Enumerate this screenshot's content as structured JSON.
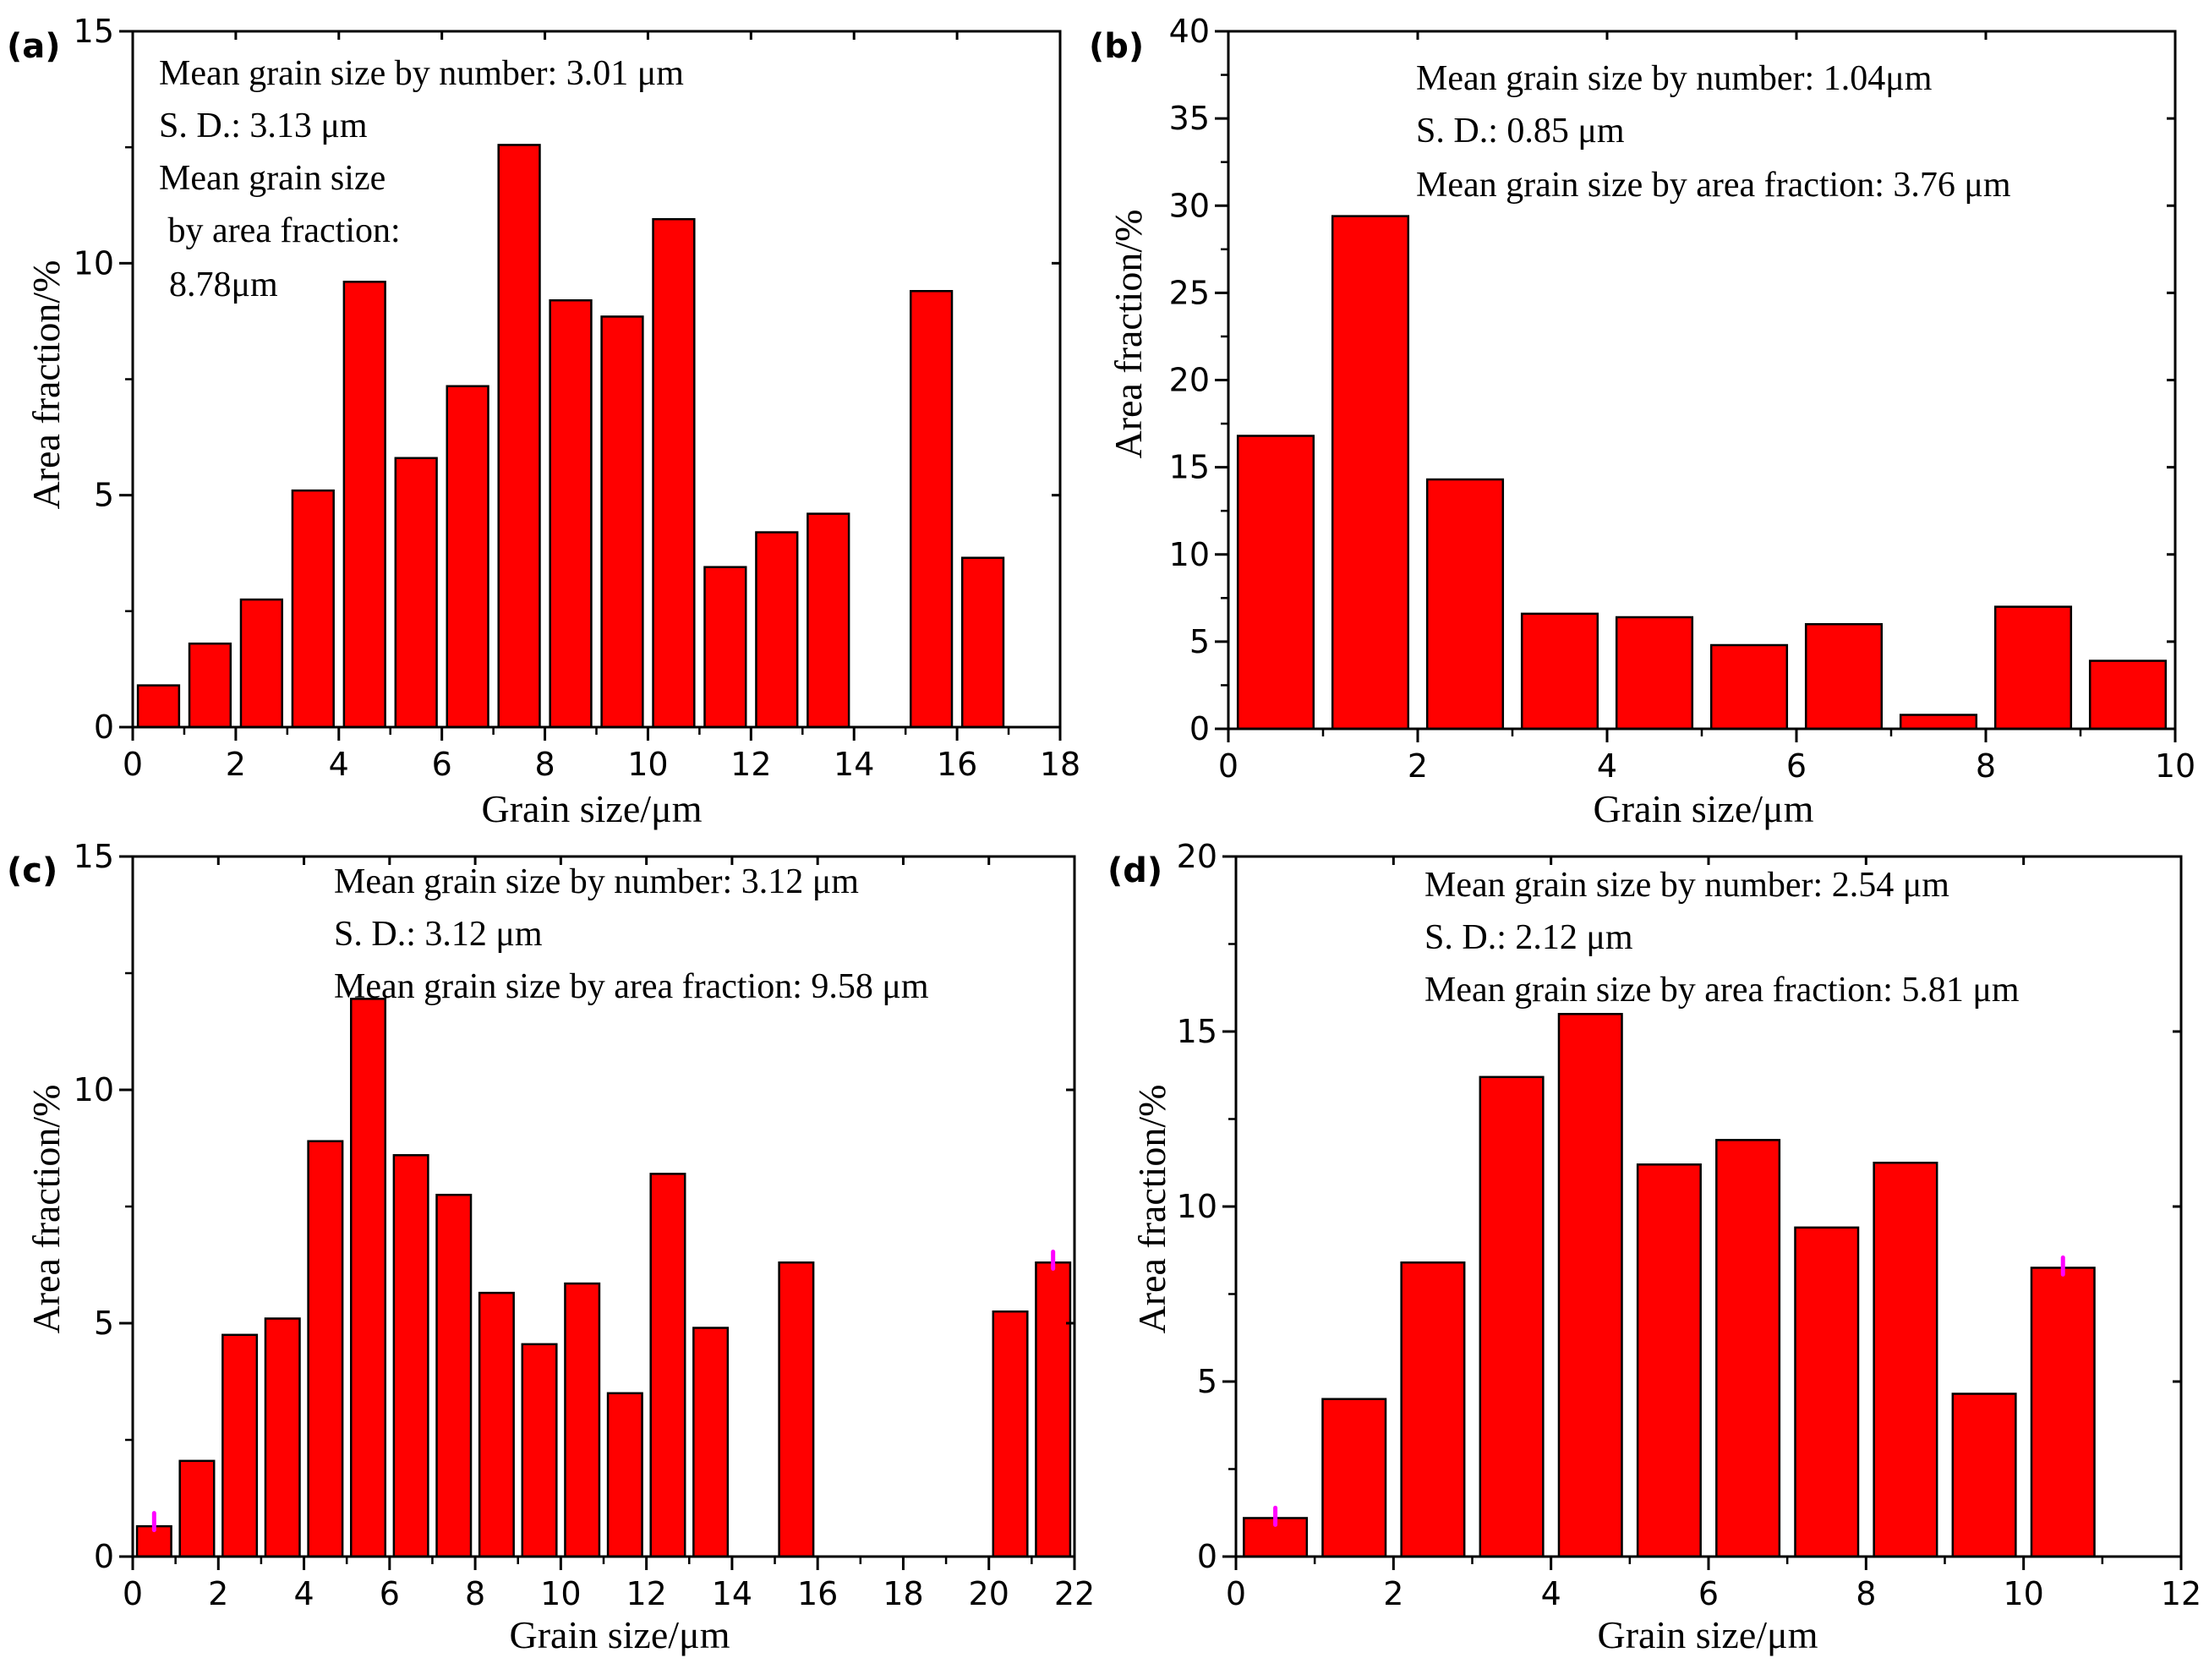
{
  "figure": {
    "colors": {
      "bar_fill": "#ff0000",
      "bar_stroke": "#000000",
      "axis": "#000000",
      "marker": "#ff00ff"
    }
  },
  "chart_data": [
    {
      "id": "a",
      "panel_label": "(a)",
      "type": "bar",
      "xlabel": "Grain size/μm",
      "ylabel": "Area fraction/%",
      "xlim": [
        0,
        18
      ],
      "ylim": [
        0,
        15
      ],
      "xticks": [
        0,
        2,
        4,
        6,
        8,
        10,
        12,
        14,
        16,
        18
      ],
      "yticks": [
        0,
        5,
        10,
        15
      ],
      "bar_width": 0.8,
      "x": [
        0.5,
        1.5,
        2.5,
        3.5,
        4.5,
        5.5,
        6.5,
        7.5,
        8.5,
        9.5,
        10.5,
        11.5,
        12.5,
        13.5,
        15.5,
        16.5
      ],
      "values": [
        0.9,
        1.8,
        2.75,
        5.1,
        9.6,
        5.8,
        7.35,
        12.55,
        9.2,
        8.85,
        10.95,
        3.45,
        4.2,
        4.6,
        9.4,
        3.65
      ],
      "annotations": [
        "Mean grain size by number: 3.01 μm",
        "S. D.: 3.13 μm",
        "Mean grain size",
        " by area fraction:",
        "8.78μm"
      ]
    },
    {
      "id": "b",
      "panel_label": "(b)",
      "type": "bar",
      "xlabel": "Grain size/μm",
      "ylabel": "Area fraction/%",
      "xlim": [
        0,
        10
      ],
      "ylim": [
        0,
        40
      ],
      "xticks": [
        0,
        2,
        4,
        6,
        8,
        10
      ],
      "yticks": [
        0,
        5,
        10,
        15,
        20,
        25,
        30,
        35,
        40
      ],
      "bar_width": 0.8,
      "x": [
        0.5,
        1.5,
        2.5,
        3.5,
        4.5,
        5.5,
        6.5,
        7.5,
        8.5,
        9.5
      ],
      "values": [
        16.8,
        29.4,
        14.3,
        6.6,
        6.4,
        4.8,
        6.0,
        0.8,
        7.0,
        3.9
      ],
      "annotations": [
        "Mean grain size by number: 1.04μm",
        "S. D.: 0.85 μm",
        "Mean grain size by area fraction: 3.76 μm"
      ]
    },
    {
      "id": "c",
      "panel_label": "(c)",
      "type": "bar",
      "xlabel": "Grain size/μm",
      "ylabel": "Area fraction/%",
      "xlim": [
        0,
        22
      ],
      "ylim": [
        0,
        15
      ],
      "xticks": [
        0,
        2,
        4,
        6,
        8,
        10,
        12,
        14,
        16,
        18,
        20,
        22
      ],
      "yticks": [
        0,
        5,
        10,
        15
      ],
      "bar_width": 0.8,
      "x": [
        0.5,
        1.5,
        2.5,
        3.5,
        4.5,
        5.5,
        6.5,
        7.5,
        8.5,
        9.5,
        10.5,
        11.5,
        12.5,
        13.5,
        15.5,
        20.5,
        21.5
      ],
      "values": [
        0.65,
        2.05,
        4.75,
        5.1,
        8.9,
        11.95,
        8.6,
        7.75,
        5.65,
        4.55,
        5.85,
        3.5,
        8.2,
        4.9,
        6.3,
        5.25,
        6.3
      ],
      "markers": [
        {
          "x": 0.5,
          "y": 0.75
        },
        {
          "x": 21.5,
          "y": 6.35
        }
      ],
      "annotations": [
        "Mean grain size by number: 3.12 μm",
        "S. D.: 3.12 μm",
        "Mean grain size by area fraction: 9.58 μm"
      ]
    },
    {
      "id": "d",
      "panel_label": "(d)",
      "type": "bar",
      "xlabel": "Grain size/μm",
      "ylabel": "Area fraction/%",
      "xlim": [
        0,
        12
      ],
      "ylim": [
        0,
        20
      ],
      "xticks": [
        0,
        2,
        4,
        6,
        8,
        10,
        12
      ],
      "yticks": [
        0,
        5,
        10,
        15,
        20
      ],
      "bar_width": 0.8,
      "x": [
        0.5,
        1.5,
        2.5,
        3.5,
        4.5,
        5.5,
        6.5,
        7.5,
        8.5,
        9.5,
        10.5
      ],
      "values": [
        1.1,
        4.5,
        8.4,
        13.7,
        15.5,
        11.2,
        11.9,
        9.4,
        11.25,
        4.65,
        8.25
      ],
      "markers": [
        {
          "x": 0.5,
          "y": 1.15
        },
        {
          "x": 10.5,
          "y": 8.3
        }
      ],
      "annotations": [
        "Mean grain size by number: 2.54 μm",
        "S. D.: 2.12 μm",
        "Mean grain size by area fraction: 5.81 μm"
      ]
    }
  ]
}
